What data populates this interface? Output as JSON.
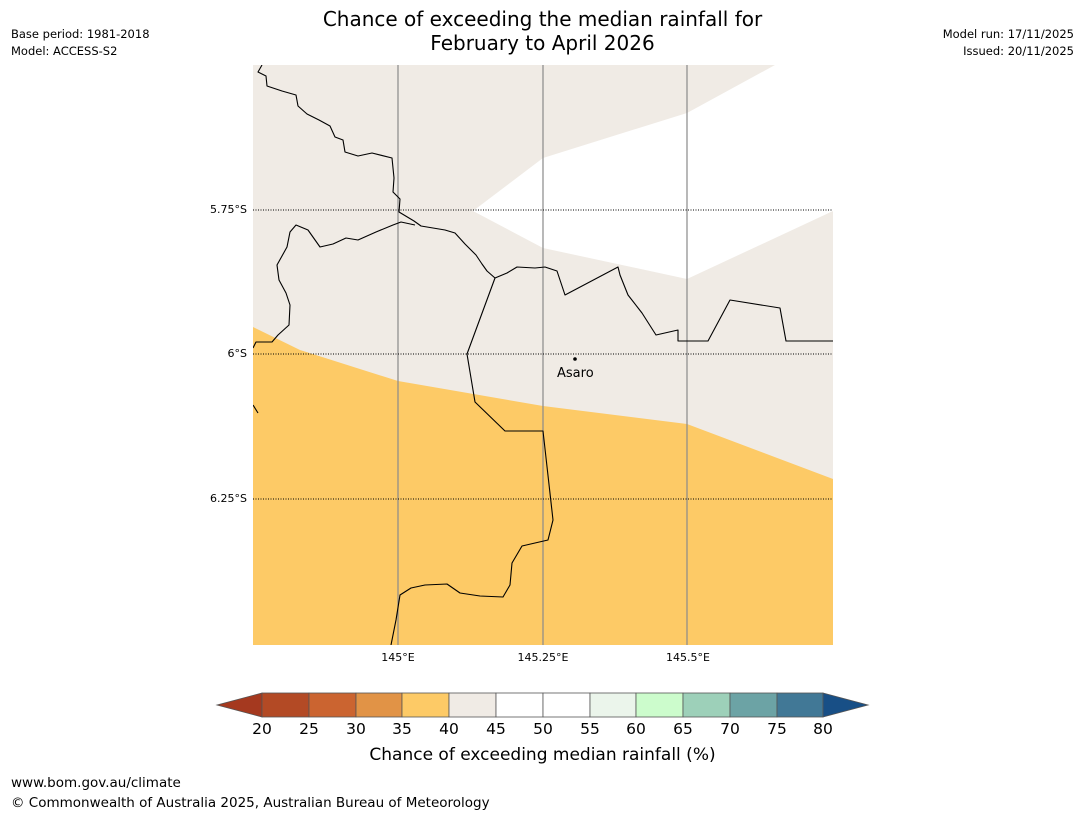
{
  "header": {
    "title_line1": "Chance of exceeding the median rainfall for",
    "title_line2": "February to April 2026",
    "base_period": "Base period: 1981-2018",
    "model": "Model: ACCESS-S2",
    "model_run": "Model run: 17/11/2025",
    "issued": "Issued: 20/11/2025"
  },
  "map": {
    "latitude_labels": [
      "5.75°S",
      "6°S",
      "6.25°S"
    ],
    "longitude_labels": [
      "145°E",
      "145.25°E",
      "145.5°E"
    ],
    "place_label": "Asaro"
  },
  "colorbar": {
    "title": "Chance of exceeding median rainfall (%)",
    "ticks": [
      "20",
      "25",
      "30",
      "35",
      "40",
      "45",
      "50",
      "55",
      "60",
      "65",
      "70",
      "75",
      "80"
    ],
    "colors": [
      "#a5391f",
      "#b34a25",
      "#cb6430",
      "#e19346",
      "#fdca66",
      "#f0ebe5",
      "#ffffff",
      "#ffffff",
      "#ebf5eb",
      "#ccfccc",
      "#9dd0b9",
      "#6ca3a5",
      "#417896",
      "#184f86"
    ]
  },
  "footer": {
    "url": "www.bom.gov.au/climate",
    "copyright": "© Commonwealth of Australia 2025, Australian Bureau of Meteorology"
  }
}
